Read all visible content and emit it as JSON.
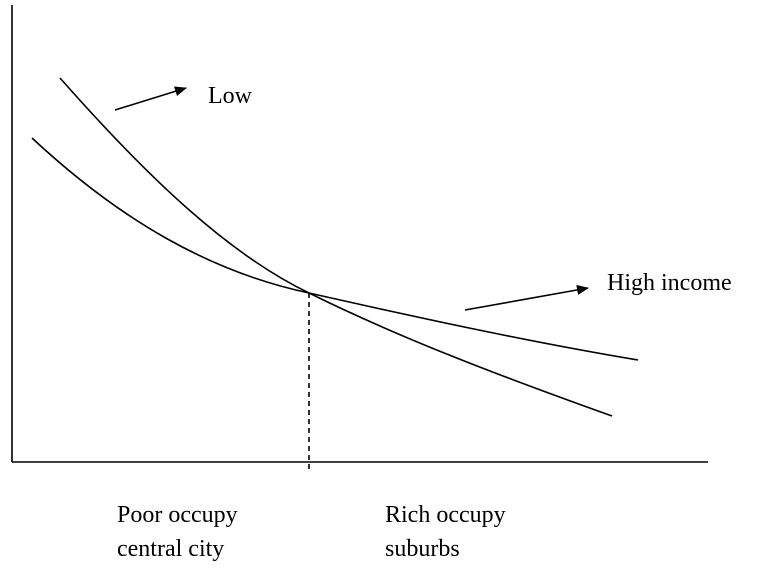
{
  "curves": [
    {
      "label": "Low"
    },
    {
      "label": "High income"
    }
  ],
  "regions": [
    {
      "lines": [
        "Poor occupy",
        "central city"
      ]
    },
    {
      "lines": [
        "Rich occupy",
        "suburbs"
      ]
    }
  ]
}
